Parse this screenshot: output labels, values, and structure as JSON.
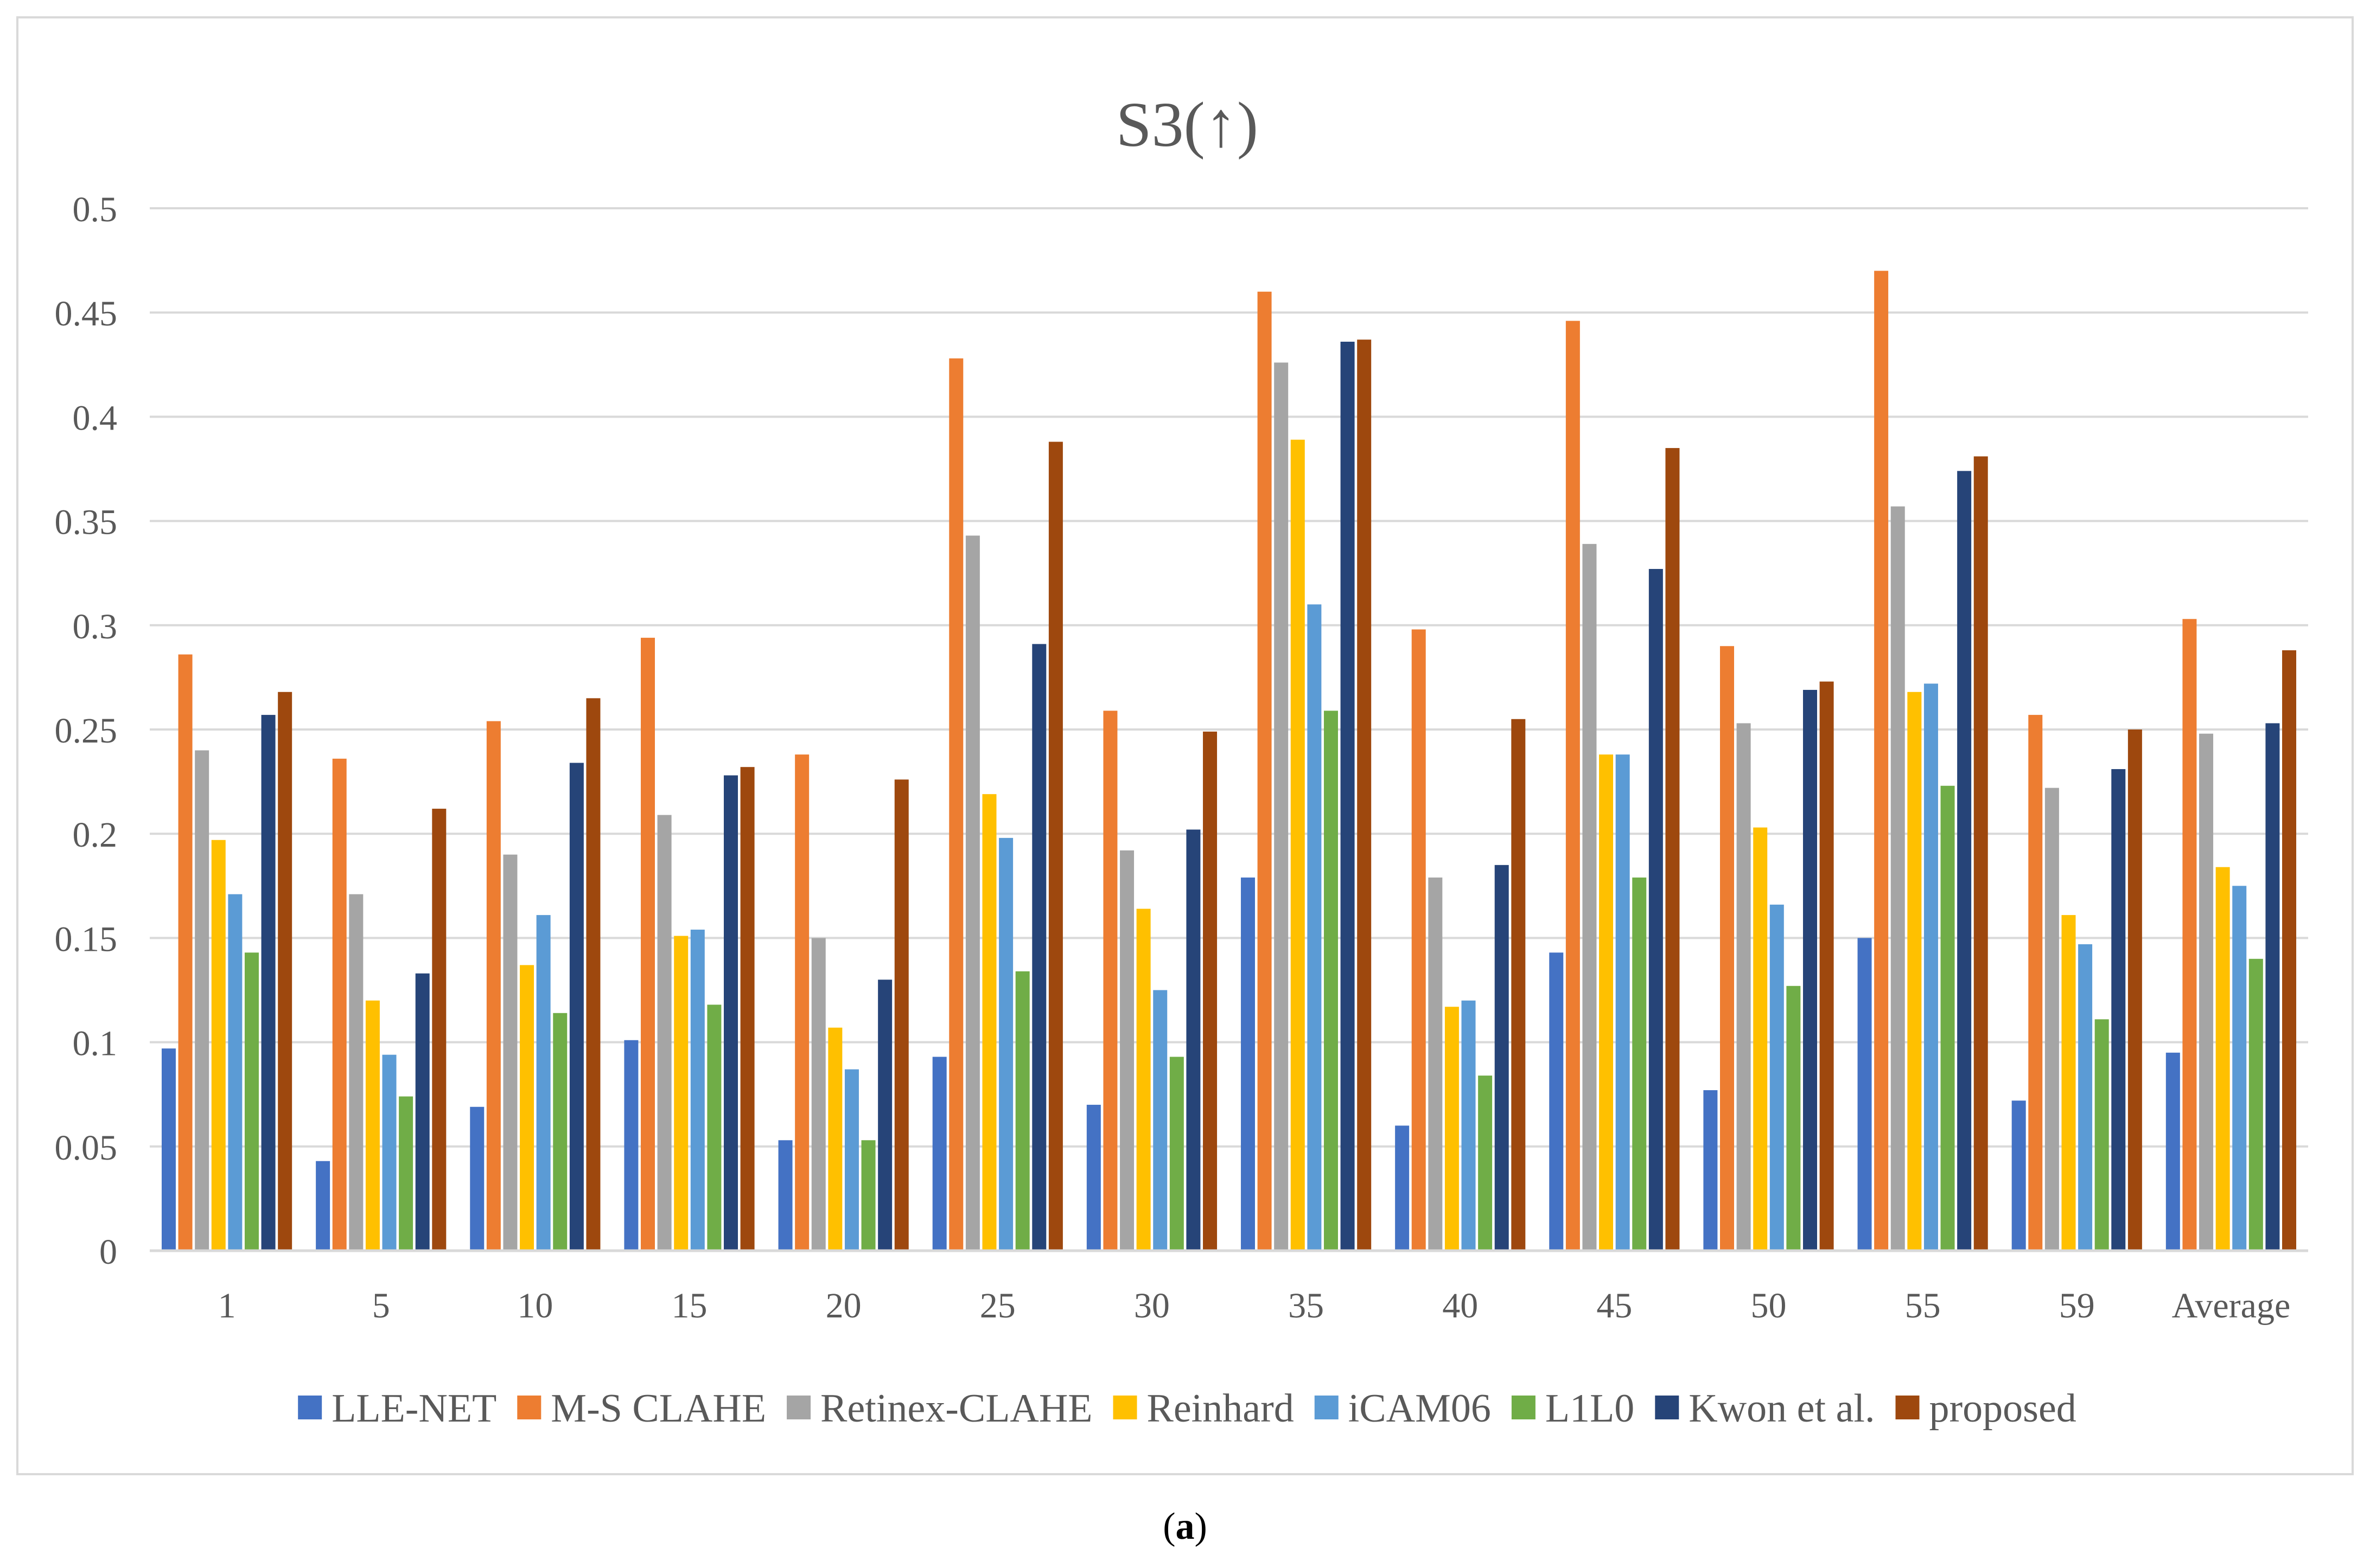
{
  "chart_data": {
    "type": "bar",
    "title": "S3(↑)",
    "xlabel": "",
    "ylabel": "",
    "ylim": [
      0,
      0.5
    ],
    "yticks": [
      "0",
      "0.05",
      "0.1",
      "0.15",
      "0.2",
      "0.25",
      "0.3",
      "0.35",
      "0.4",
      "0.45",
      "0.5"
    ],
    "grid": true,
    "legend_position": "bottom",
    "categories": [
      "1",
      "5",
      "10",
      "15",
      "20",
      "25",
      "30",
      "35",
      "40",
      "45",
      "50",
      "55",
      "59",
      "Average"
    ],
    "series": [
      {
        "name": "LLE-NET",
        "color": "#4472c4",
        "values": [
          0.097,
          0.043,
          0.069,
          0.101,
          0.053,
          0.093,
          0.07,
          0.179,
          0.06,
          0.143,
          0.077,
          0.15,
          0.072,
          0.095
        ]
      },
      {
        "name": "M-S CLAHE",
        "color": "#ed7d31",
        "values": [
          0.286,
          0.236,
          0.254,
          0.294,
          0.238,
          0.428,
          0.259,
          0.46,
          0.298,
          0.446,
          0.29,
          0.47,
          0.257,
          0.303
        ]
      },
      {
        "name": "Retinex-CLAHE",
        "color": "#a5a5a5",
        "values": [
          0.24,
          0.171,
          0.19,
          0.209,
          0.15,
          0.343,
          0.192,
          0.426,
          0.179,
          0.339,
          0.253,
          0.357,
          0.222,
          0.248
        ]
      },
      {
        "name": "Reinhard",
        "color": "#ffc000",
        "values": [
          0.197,
          0.12,
          0.137,
          0.151,
          0.107,
          0.219,
          0.164,
          0.389,
          0.117,
          0.238,
          0.203,
          0.268,
          0.161,
          0.184
        ]
      },
      {
        "name": "iCAM06",
        "color": "#5b9bd5",
        "values": [
          0.171,
          0.094,
          0.161,
          0.154,
          0.087,
          0.198,
          0.125,
          0.31,
          0.12,
          0.238,
          0.166,
          0.272,
          0.147,
          0.175
        ]
      },
      {
        "name": "L1L0",
        "color": "#70ad47",
        "values": [
          0.143,
          0.074,
          0.114,
          0.118,
          0.053,
          0.134,
          0.093,
          0.259,
          0.084,
          0.179,
          0.127,
          0.223,
          0.111,
          0.14
        ]
      },
      {
        "name": "Kwon et al.",
        "color": "#264478",
        "values": [
          0.257,
          0.133,
          0.234,
          0.228,
          0.13,
          0.291,
          0.202,
          0.436,
          0.185,
          0.327,
          0.269,
          0.374,
          0.231,
          0.253
        ]
      },
      {
        "name": "proposed",
        "color": "#9e480e",
        "values": [
          0.268,
          0.212,
          0.265,
          0.232,
          0.226,
          0.388,
          0.249,
          0.437,
          0.255,
          0.385,
          0.273,
          0.381,
          0.25,
          0.288
        ]
      }
    ]
  },
  "caption": {
    "open": "(",
    "letter": "a",
    "close": ")"
  }
}
